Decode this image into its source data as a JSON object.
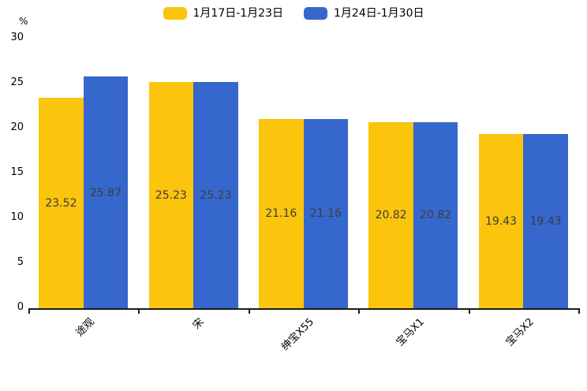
{
  "chart_data": {
    "type": "bar",
    "title": "",
    "unit_label": "%",
    "categories": [
      "途观",
      "宋",
      "绅宝X55",
      "宝马X1",
      "宝马X2"
    ],
    "series": [
      {
        "name": "1月17日-1月23日",
        "color": "#FBC40D",
        "values": [
          23.52,
          25.23,
          21.16,
          20.82,
          19.43
        ]
      },
      {
        "name": "1月24日-1月30日",
        "color": "#3667CC",
        "values": [
          25.87,
          25.23,
          21.16,
          20.82,
          19.43
        ]
      }
    ],
    "ylim": [
      0,
      30
    ],
    "yticks": [
      0,
      5,
      10,
      15,
      20,
      25,
      30
    ],
    "grid": false,
    "legend_position": "top-center",
    "value_labels": "inside-center",
    "value_label_color": "#3d3d3d",
    "axis_color": "#1a1a1a",
    "xtick_rotation_deg": 45
  }
}
